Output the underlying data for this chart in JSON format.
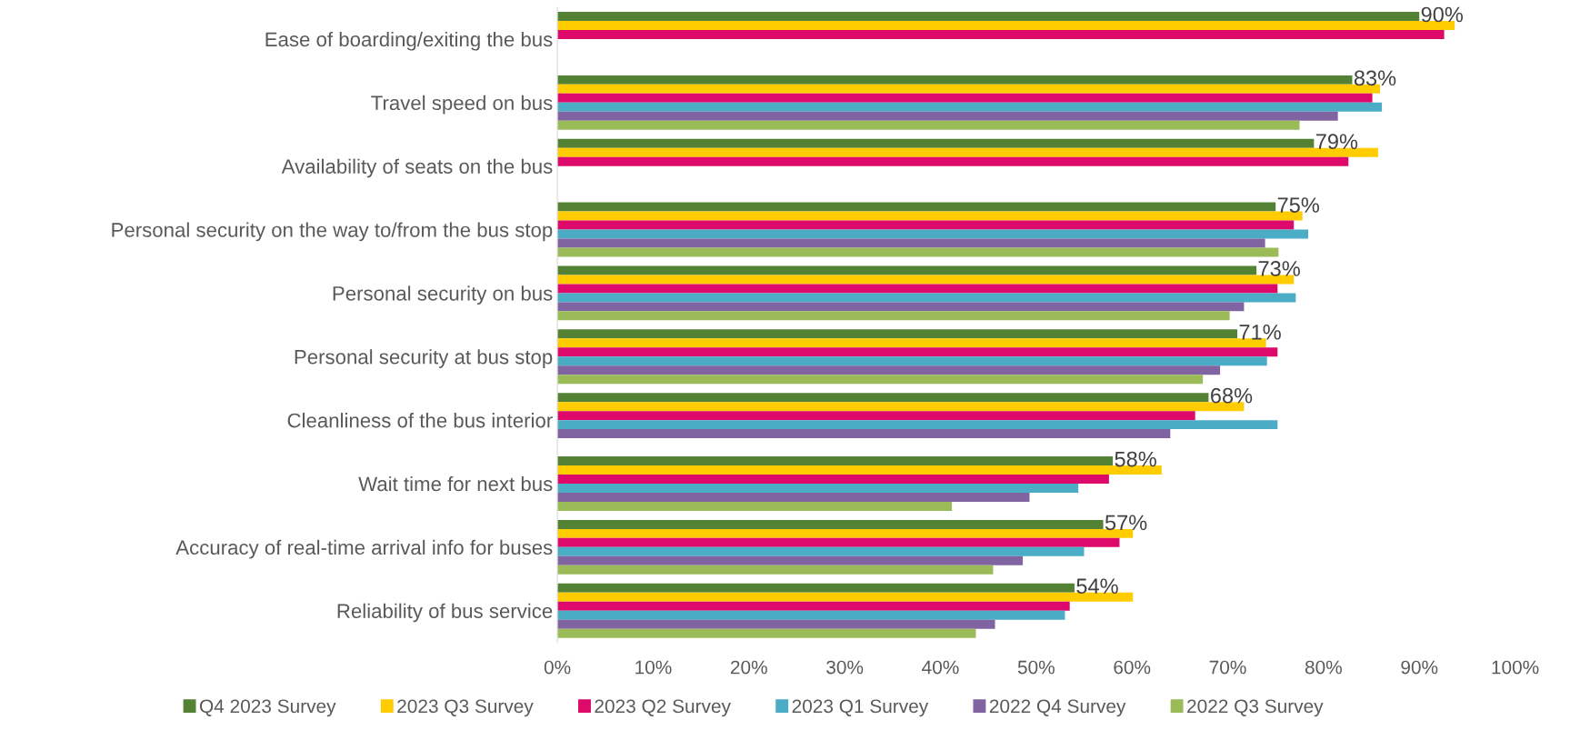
{
  "chart_data": {
    "type": "bar",
    "orientation": "horizontal",
    "categories": [
      "Ease of boarding/exiting the bus",
      "Travel speed on bus",
      "Availability of seats on the bus",
      "Personal security on the way to/from the bus stop",
      "Personal security on bus",
      "Personal security at bus stop",
      "Cleanliness of the bus interior",
      "Wait time for next bus",
      "Accuracy of real-time arrival info for buses",
      "Reliability of bus service"
    ],
    "series": [
      {
        "name": "Q4 2023 Survey",
        "color": "#548235",
        "values": [
          90,
          83,
          79,
          75,
          73,
          71,
          68,
          58,
          57,
          54
        ],
        "value_labels": [
          "90%",
          "83%",
          "79%",
          "75%",
          "73%",
          "71%",
          "68%",
          "58%",
          "57%",
          "54%"
        ]
      },
      {
        "name": "2023 Q3 Survey",
        "color": "#ffcc00",
        "values": [
          93.7,
          85.9,
          85.7,
          77.8,
          76.9,
          74.0,
          71.7,
          63.1,
          60.1,
          60.1
        ]
      },
      {
        "name": "2023 Q2 Survey",
        "color": "#dd0a6b",
        "values": [
          92.6,
          85.1,
          82.6,
          76.9,
          75.2,
          75.2,
          66.6,
          57.6,
          58.7,
          53.5
        ]
      },
      {
        "name": "2023 Q1 Survey",
        "color": "#4bacc6",
        "values": [
          null,
          86.1,
          null,
          78.4,
          77.1,
          74.1,
          75.2,
          54.4,
          55.0,
          53.0
        ]
      },
      {
        "name": "2022 Q4 Survey",
        "color": "#8064a2",
        "values": [
          null,
          81.5,
          null,
          73.9,
          71.7,
          69.2,
          64.0,
          49.3,
          48.6,
          45.7
        ]
      },
      {
        "name": "2022 Q3 Survey",
        "color": "#9bbb59",
        "values": [
          null,
          77.5,
          null,
          75.3,
          70.2,
          67.4,
          null,
          41.2,
          45.5,
          43.7
        ]
      }
    ],
    "xlim": [
      0,
      100
    ],
    "xticks": [
      {
        "value": 0,
        "label": "0%"
      },
      {
        "value": 10,
        "label": "10%"
      },
      {
        "value": 20,
        "label": "20%"
      },
      {
        "value": 30,
        "label": "30%"
      },
      {
        "value": 40,
        "label": "40%"
      },
      {
        "value": 50,
        "label": "50%"
      },
      {
        "value": 60,
        "label": "60%"
      },
      {
        "value": 70,
        "label": "70%"
      },
      {
        "value": 80,
        "label": "80%"
      },
      {
        "value": 90,
        "label": "90%"
      },
      {
        "value": 100,
        "label": "100%"
      }
    ],
    "grid": false,
    "legend": "bottom"
  }
}
